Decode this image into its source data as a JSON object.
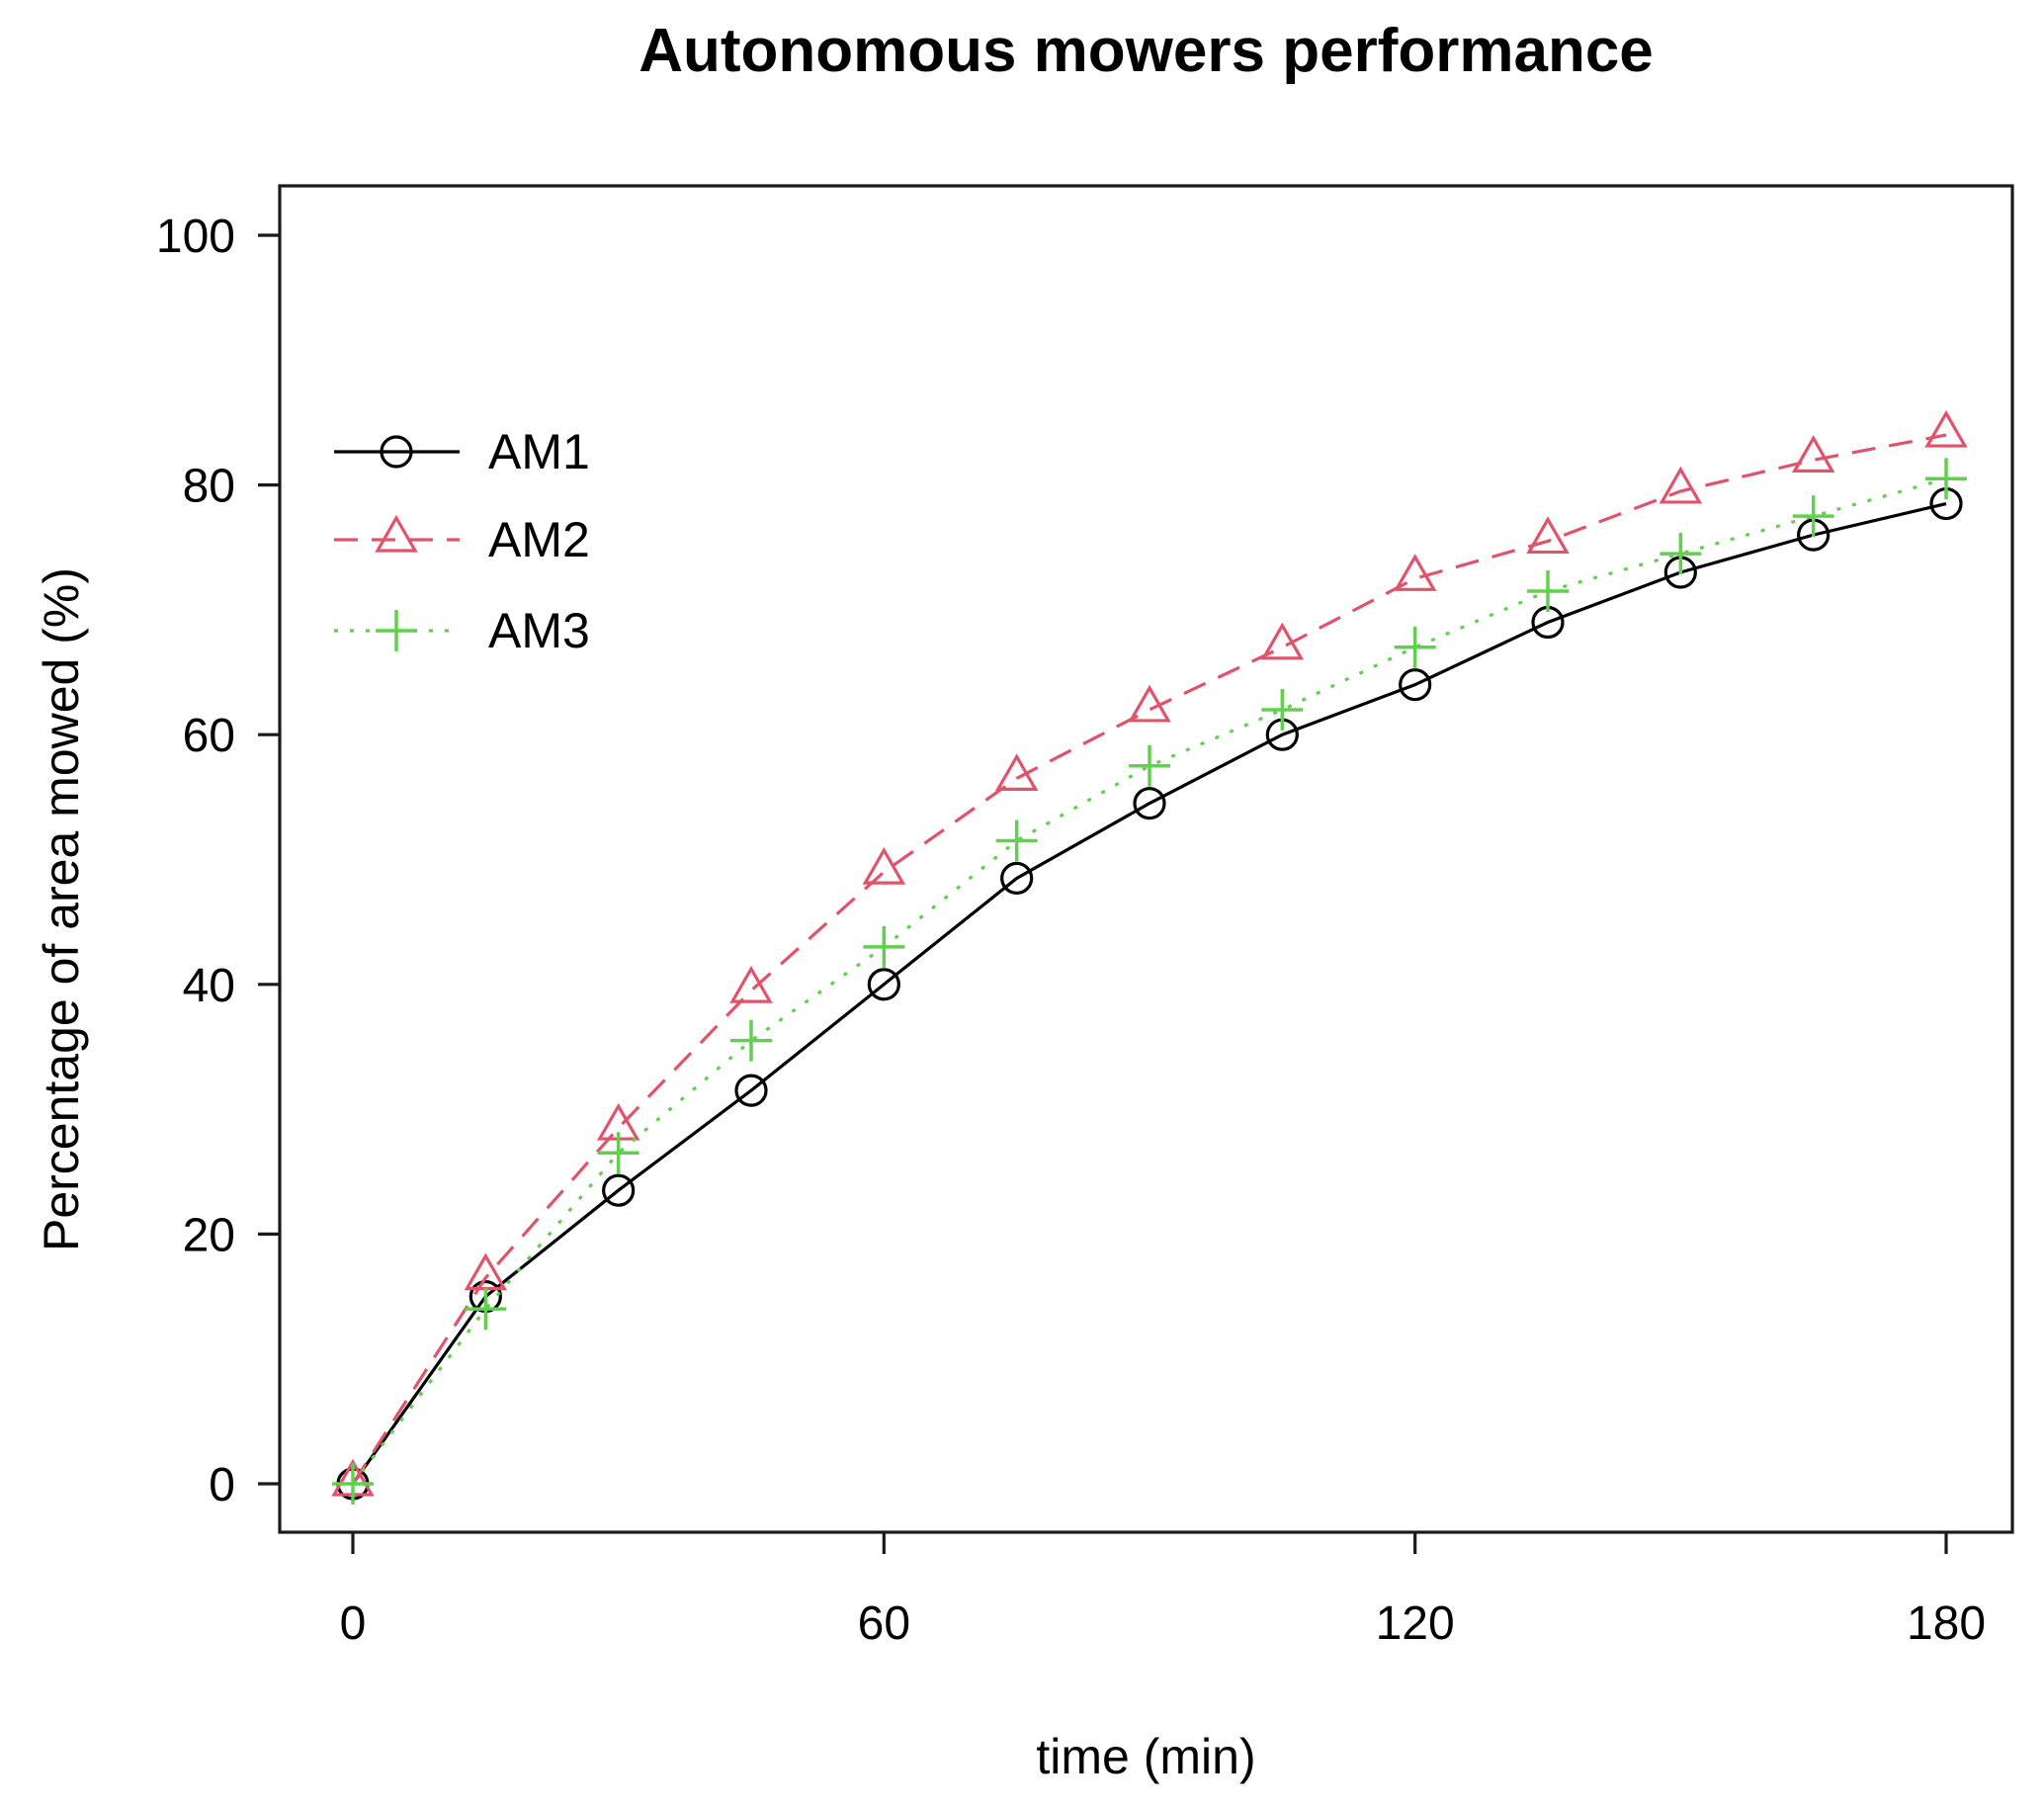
{
  "chart_data": {
    "type": "line",
    "title": "Autonomous mowers performance",
    "xlabel": "time (min)",
    "ylabel": "Percentage of area mowed (%)",
    "xlim": [
      0,
      180
    ],
    "ylim": [
      0,
      100
    ],
    "xticks": [
      0,
      60,
      120,
      180
    ],
    "yticks": [
      0,
      20,
      40,
      60,
      80,
      100
    ],
    "grid": false,
    "legend_position": "upper-left",
    "x": [
      0,
      15,
      30,
      45,
      60,
      75,
      90,
      105,
      120,
      135,
      150,
      165,
      180
    ],
    "series": [
      {
        "name": "AM1",
        "color": "#000000",
        "linestyle": "solid",
        "marker": "circle",
        "values": [
          0,
          15,
          23.5,
          31.5,
          40,
          48.5,
          54.5,
          60,
          64,
          69,
          73,
          76,
          78.5
        ]
      },
      {
        "name": "AM2",
        "color": "#DF536B",
        "linestyle": "dashed",
        "marker": "triangle",
        "values": [
          0,
          16.5,
          28.5,
          39.5,
          49,
          56.5,
          62,
          67,
          72.5,
          75.5,
          79.5,
          82,
          84
        ]
      },
      {
        "name": "AM3",
        "color": "#61D04F",
        "linestyle": "dotted",
        "marker": "plus",
        "values": [
          0,
          14,
          26.5,
          35.5,
          43,
          51.5,
          57.5,
          62,
          67,
          71.5,
          74.5,
          77.5,
          80.5
        ]
      }
    ],
    "axis_color": "#1a1a1a",
    "text_color": "#000000",
    "background": "#ffffff"
  }
}
